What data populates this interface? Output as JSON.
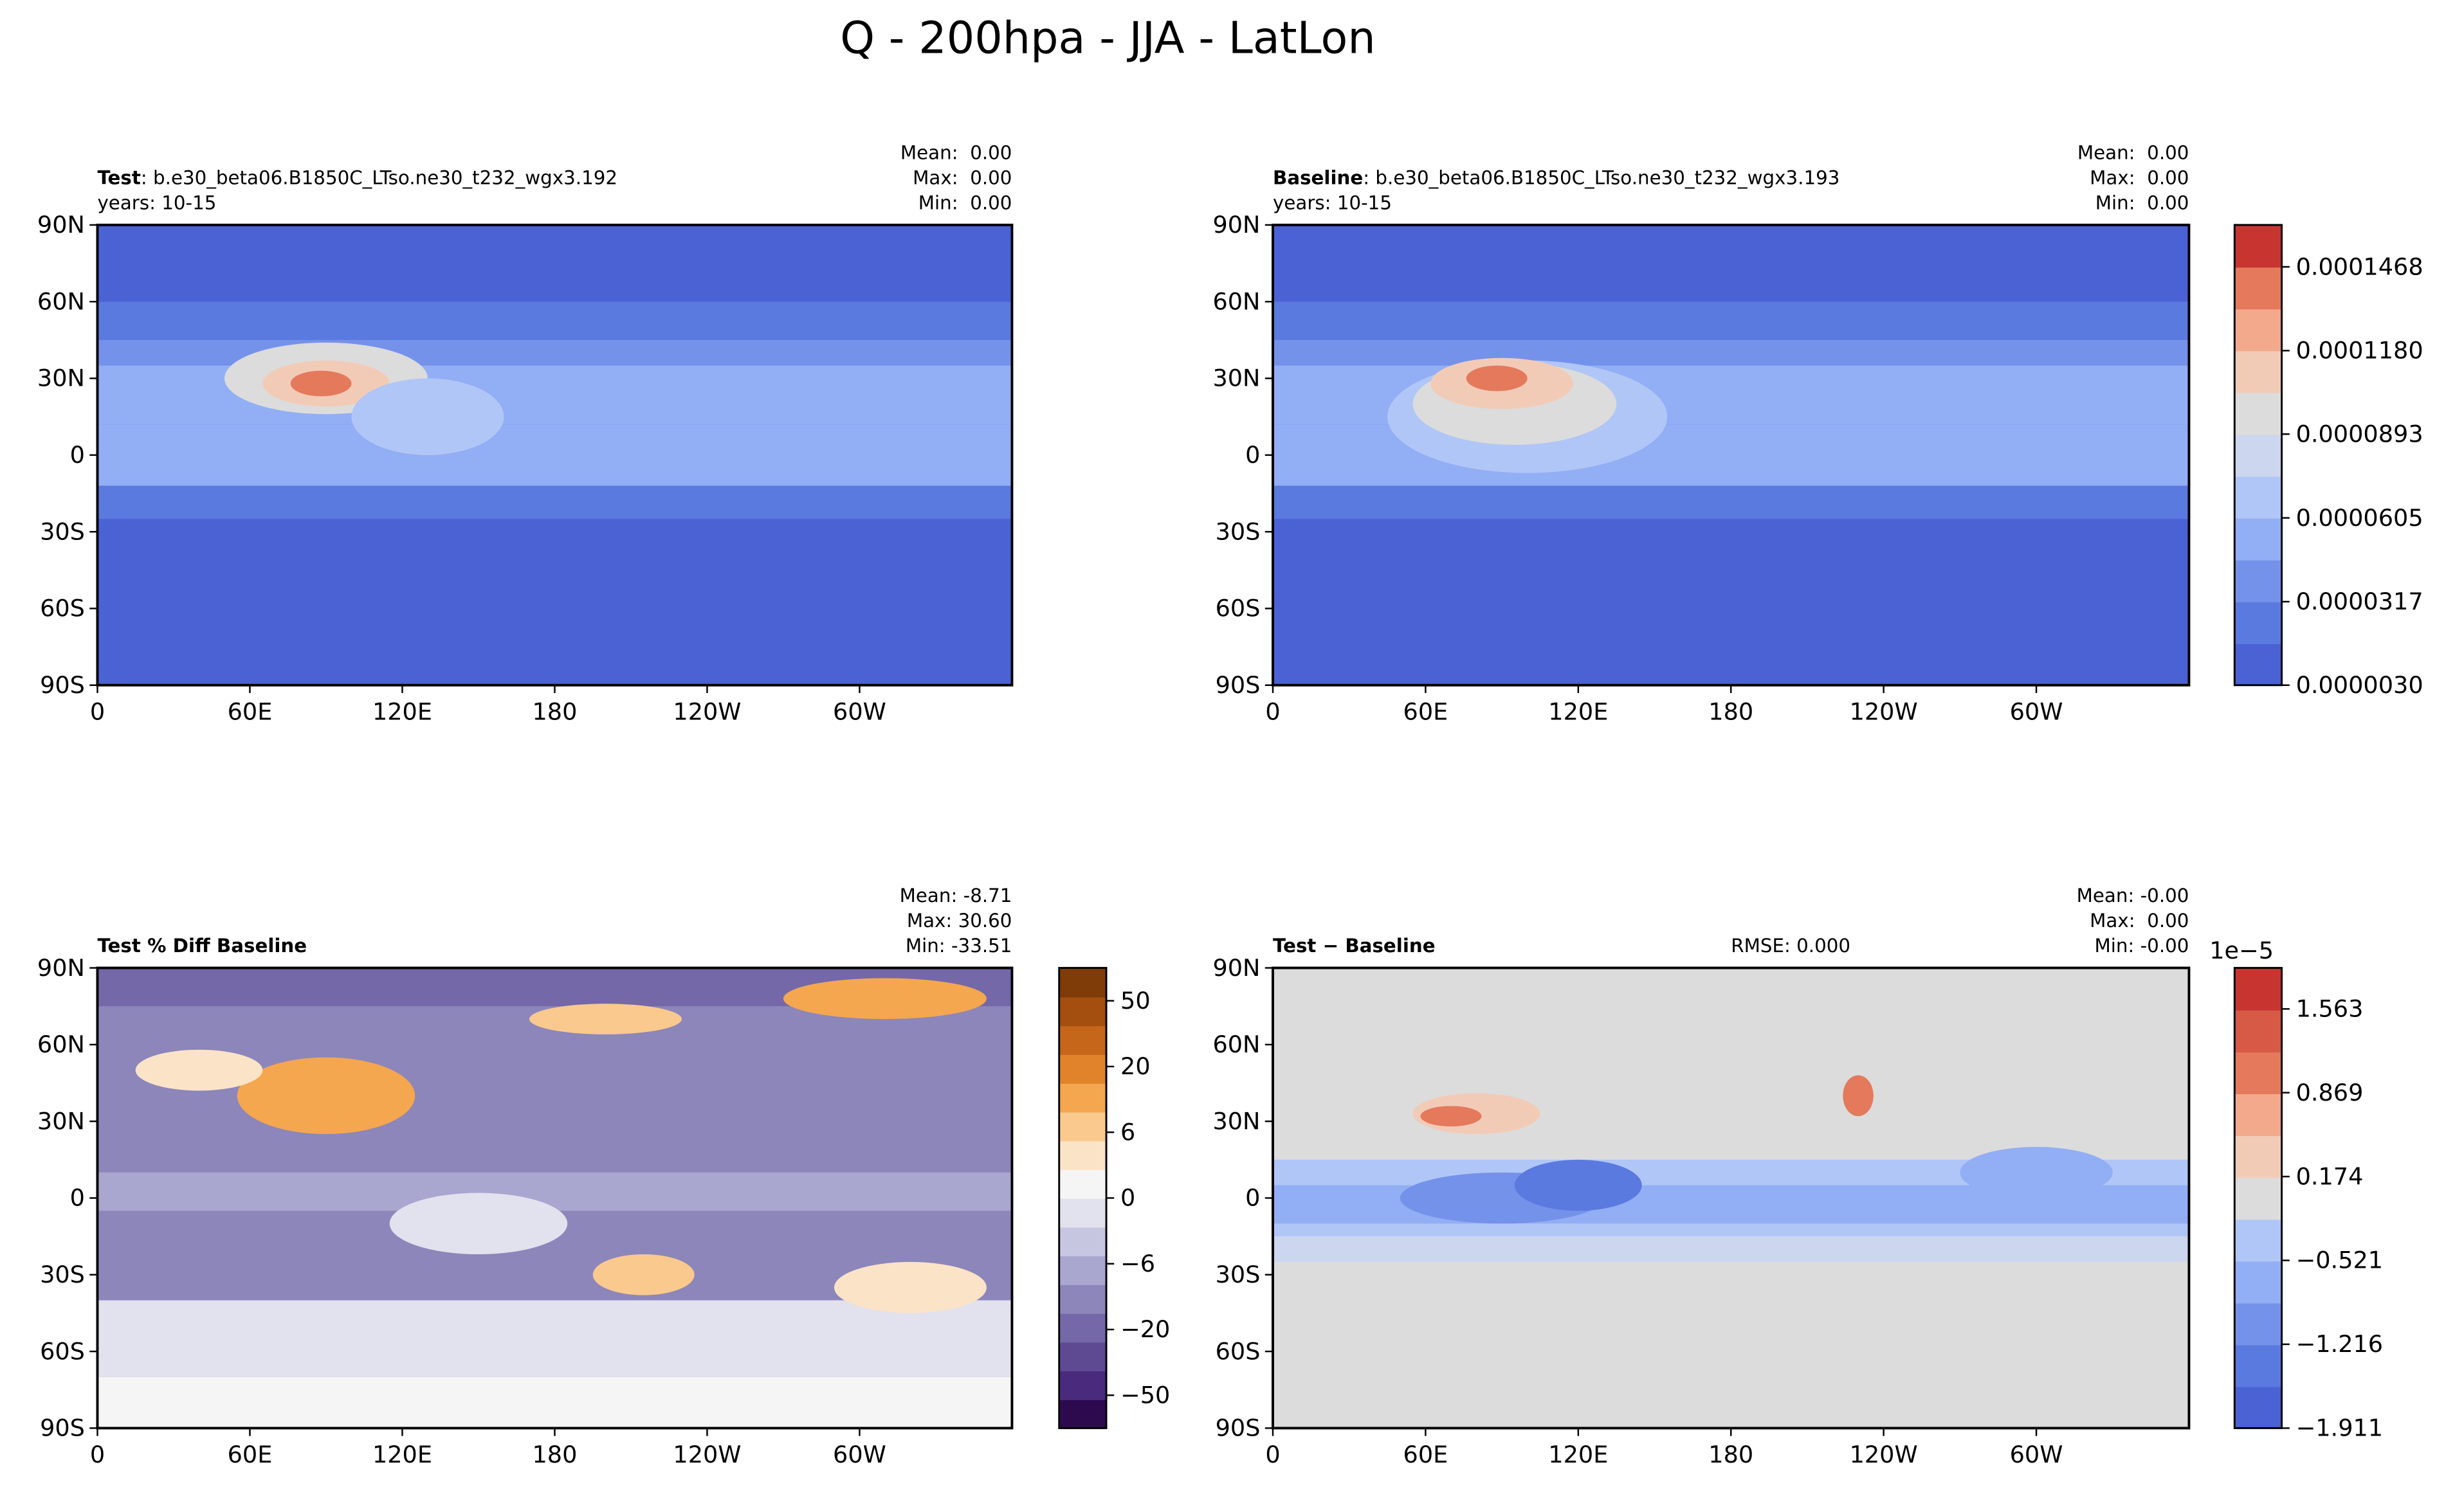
{
  "title": "Q - 200hpa - JJA - LatLon",
  "chart_data": [
    {
      "type": "map",
      "label": "Test",
      "case_name": ": b.e30_beta06.B1850C_LTso.ne30_t232_wgx3.192",
      "years": "years: 10-15",
      "stats": [
        "Mean:  0.00",
        "Max:  0.00",
        "Min:  0.00"
      ],
      "xlim": [
        0,
        360
      ],
      "xticks": [
        0,
        {
          "value": 60,
          "label": "60E"
        },
        {
          "value": 120,
          "label": "120E"
        },
        180,
        {
          "value": 240,
          "label": "120W"
        },
        {
          "value": 300,
          "label": "60W"
        }
      ],
      "ylim": [
        -90,
        90
      ],
      "yticks": [
        {
          "value": 90,
          "label": "90N"
        },
        {
          "value": 60,
          "label": "60N"
        },
        {
          "value": 30,
          "label": "30N"
        },
        0,
        {
          "value": -30,
          "label": "30S"
        },
        {
          "value": -60,
          "label": "60S"
        },
        {
          "value": -90,
          "label": "90S"
        }
      ]
    },
    {
      "type": "map",
      "label": "Baseline",
      "case_name": ": b.e30_beta06.B1850C_LTso.ne30_t232_wgx3.193",
      "years": "years: 10-15",
      "stats": [
        "Mean:  0.00",
        "Max:  0.00",
        "Min:  0.00"
      ],
      "xlim": [
        0,
        360
      ],
      "xticks": [
        0,
        {
          "value": 60,
          "label": "60E"
        },
        {
          "value": 120,
          "label": "120E"
        },
        180,
        {
          "value": 240,
          "label": "120W"
        },
        {
          "value": 300,
          "label": "60W"
        }
      ],
      "ylim": [
        -90,
        90
      ],
      "yticks": [
        {
          "value": 90,
          "label": "90N"
        },
        {
          "value": 60,
          "label": "60N"
        },
        {
          "value": 30,
          "label": "30N"
        },
        0,
        {
          "value": -30,
          "label": "30S"
        },
        {
          "value": -60,
          "label": "60S"
        },
        {
          "value": -90,
          "label": "90S"
        }
      ],
      "colorbar": {
        "lim": [
          3e-06,
          0.0001612
        ],
        "ticks": [
          {
            "value": 3e-06,
            "label": "0.0000030"
          },
          {
            "value": 3.17e-05,
            "label": "0.0000317"
          },
          {
            "value": 6.05e-05,
            "label": "0.0000605"
          },
          {
            "value": 8.93e-05,
            "label": "0.0000893"
          },
          {
            "value": 0.000118,
            "label": "0.0001180"
          },
          {
            "value": 0.0001468,
            "label": "0.0001468"
          }
        ],
        "colors": [
          "#4a62d4",
          "#5b7ae0",
          "#7592ea",
          "#92aef4",
          "#b0c6f7",
          "#ccd6ee",
          "#dcdcdc",
          "#f2cbb7",
          "#f3a98c",
          "#e4795c",
          "#c83531"
        ]
      }
    },
    {
      "type": "map",
      "label": "Test % Diff Baseline",
      "stats": [
        "Mean: -8.71",
        "Max: 30.60",
        "Min: -33.51"
      ],
      "xlim": [
        0,
        360
      ],
      "xticks": [
        0,
        {
          "value": 60,
          "label": "60E"
        },
        {
          "value": 120,
          "label": "120E"
        },
        180,
        {
          "value": 240,
          "label": "120W"
        },
        {
          "value": 300,
          "label": "60W"
        }
      ],
      "ylim": [
        -90,
        90
      ],
      "yticks": [
        {
          "value": 90,
          "label": "90N"
        },
        {
          "value": 60,
          "label": "60N"
        },
        {
          "value": 30,
          "label": "30N"
        },
        0,
        {
          "value": -30,
          "label": "30S"
        },
        {
          "value": -60,
          "label": "60S"
        },
        {
          "value": -90,
          "label": "90S"
        }
      ],
      "colorbar": {
        "ticks": [
          {
            "value": -50,
            "label": "−50"
          },
          {
            "value": -20,
            "label": "−20"
          },
          {
            "value": -6,
            "label": "−6"
          },
          0,
          6,
          20,
          50
        ],
        "colors": [
          "#2d0a4e",
          "#4a2a7d",
          "#5e4a93",
          "#7468a8",
          "#8d86bb",
          "#a9a6cf",
          "#c7c6e0",
          "#e2e1ee",
          "#f5f5f5",
          "#fbe3c7",
          "#f9c98e",
          "#f4a74f",
          "#e0832a",
          "#c5661a",
          "#a44e0f",
          "#7f3b08"
        ]
      }
    },
    {
      "type": "map",
      "label": "Test − Baseline",
      "rmse": "RMSE: 0.000",
      "stats": [
        "Mean: -0.00",
        "Max:  0.00",
        "Min: -0.00"
      ],
      "xlim": [
        0,
        360
      ],
      "xticks": [
        0,
        {
          "value": 60,
          "label": "60E"
        },
        {
          "value": 120,
          "label": "120E"
        },
        180,
        {
          "value": 240,
          "label": "120W"
        },
        {
          "value": 300,
          "label": "60W"
        }
      ],
      "ylim": [
        -90,
        90
      ],
      "yticks": [
        {
          "value": 90,
          "label": "90N"
        },
        {
          "value": 60,
          "label": "60N"
        },
        {
          "value": 30,
          "label": "30N"
        },
        0,
        {
          "value": -30,
          "label": "30S"
        },
        {
          "value": -60,
          "label": "60S"
        },
        {
          "value": -90,
          "label": "90S"
        }
      ],
      "colorbar": {
        "lim": [
          -1.911,
          1.903
        ],
        "offset": "1e−5",
        "ticks": [
          {
            "value": -1.911,
            "label": "−1.911"
          },
          {
            "value": -1.216,
            "label": "−1.216"
          },
          {
            "value": -0.521,
            "label": "−0.521"
          },
          0.174,
          0.869,
          1.563
        ],
        "colors": [
          "#4a62d4",
          "#5b7ae0",
          "#7592ea",
          "#92aef4",
          "#b0c6f7",
          "#dcdcdc",
          "#f2cbb7",
          "#f3a98c",
          "#e4795c",
          "#d65a45",
          "#c83531"
        ]
      }
    }
  ]
}
